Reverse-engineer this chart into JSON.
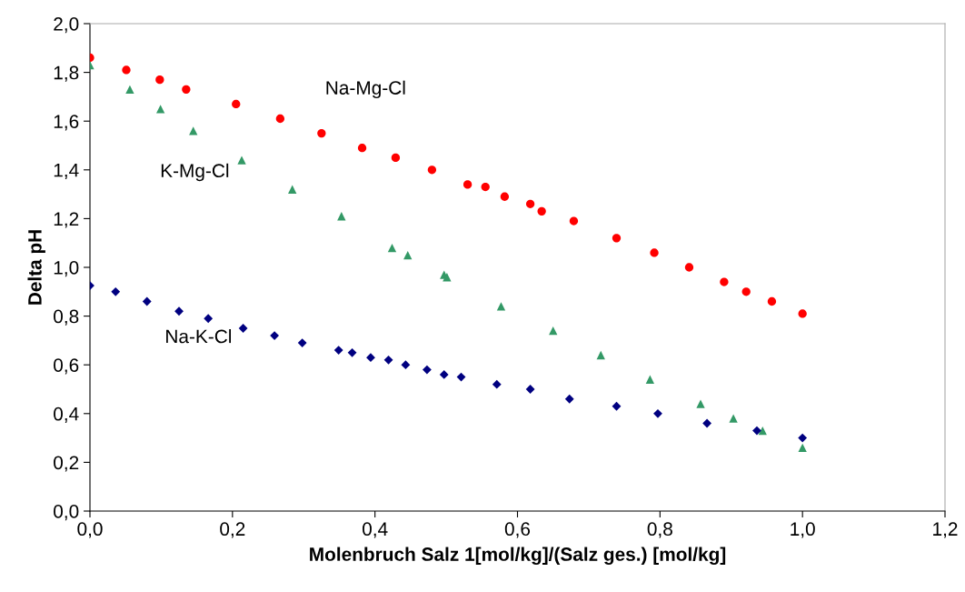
{
  "chart_data": {
    "type": "scatter",
    "xlabel": "Molenbruch Salz 1[mol/kg]/(Salz ges.) [mol/kg]",
    "ylabel": "Delta pH",
    "xlim": [
      0,
      1.2
    ],
    "ylim": [
      0,
      2.0
    ],
    "xticks": [
      {
        "value": 0,
        "label": "0,0"
      },
      {
        "value": 0.2,
        "label": "0,2"
      },
      {
        "value": 0.4,
        "label": "0,4"
      },
      {
        "value": 0.6,
        "label": "0,6"
      },
      {
        "value": 0.8,
        "label": "0,8"
      },
      {
        "value": 1.0,
        "label": "1,0"
      },
      {
        "value": 1.2,
        "label": "1,2"
      }
    ],
    "yticks": [
      {
        "value": 0,
        "label": "0,0"
      },
      {
        "value": 0.2,
        "label": "0,2"
      },
      {
        "value": 0.4,
        "label": "0,4"
      },
      {
        "value": 0.6,
        "label": "0,6"
      },
      {
        "value": 0.8,
        "label": "0,8"
      },
      {
        "value": 1.0,
        "label": "1,0"
      },
      {
        "value": 1.2,
        "label": "1,2"
      },
      {
        "value": 1.4,
        "label": "1,4"
      },
      {
        "value": 1.6,
        "label": "1,6"
      },
      {
        "value": 1.8,
        "label": "1,8"
      },
      {
        "value": 2.0,
        "label": "2,0"
      }
    ],
    "grid": false,
    "series": [
      {
        "name": "Na-Mg-Cl",
        "color": "#ff0000",
        "marker": "circle",
        "x": [
          0,
          0.051,
          0.098,
          0.135,
          0.205,
          0.267,
          0.325,
          0.382,
          0.429,
          0.48,
          0.53,
          0.555,
          0.582,
          0.618,
          0.634,
          0.679,
          0.739,
          0.792,
          0.841,
          0.89,
          0.921,
          0.957,
          1.0
        ],
        "values": [
          1.86,
          1.81,
          1.77,
          1.73,
          1.67,
          1.61,
          1.55,
          1.49,
          1.45,
          1.4,
          1.34,
          1.33,
          1.29,
          1.26,
          1.23,
          1.19,
          1.12,
          1.06,
          1.0,
          0.94,
          0.9,
          0.86,
          0.81
        ]
      },
      {
        "name": "K-Mg-Cl",
        "color": "#339966",
        "marker": "triangle",
        "x": [
          0,
          0.056,
          0.099,
          0.145,
          0.213,
          0.284,
          0.353,
          0.424,
          0.446,
          0.497,
          0.501,
          0.577,
          0.65,
          0.717,
          0.786,
          0.857,
          0.903,
          0.944,
          1.0
        ],
        "values": [
          1.83,
          1.73,
          1.65,
          1.56,
          1.44,
          1.32,
          1.21,
          1.08,
          1.05,
          0.97,
          0.96,
          0.84,
          0.74,
          0.64,
          0.54,
          0.44,
          0.38,
          0.33,
          0.26
        ]
      },
      {
        "name": "Na-K-Cl",
        "color": "#000080",
        "marker": "diamond",
        "x": [
          0,
          0.036,
          0.08,
          0.125,
          0.166,
          0.215,
          0.259,
          0.298,
          0.349,
          0.368,
          0.394,
          0.419,
          0.443,
          0.473,
          0.497,
          0.521,
          0.571,
          0.618,
          0.673,
          0.739,
          0.797,
          0.866,
          0.936,
          1.0
        ],
        "values": [
          0.925,
          0.9,
          0.86,
          0.82,
          0.79,
          0.75,
          0.72,
          0.69,
          0.66,
          0.65,
          0.63,
          0.62,
          0.6,
          0.58,
          0.56,
          0.55,
          0.52,
          0.5,
          0.46,
          0.43,
          0.4,
          0.36,
          0.33,
          0.3
        ]
      }
    ]
  }
}
